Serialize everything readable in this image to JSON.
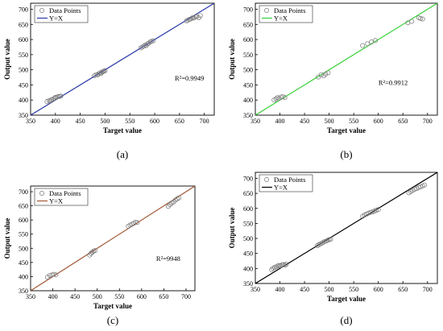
{
  "chart_data": [
    {
      "id": "a",
      "type": "scatter",
      "caption": "(a)",
      "xlabel": "Target value",
      "ylabel": "Output value",
      "xlim": [
        350,
        720
      ],
      "ylim": [
        350,
        720
      ],
      "xticks": [
        350,
        400,
        450,
        500,
        550,
        600,
        650,
        700
      ],
      "yticks": [
        350,
        400,
        450,
        500,
        550,
        600,
        650,
        700
      ],
      "legend_position": "top-left",
      "legend": [
        {
          "name": "Data Points",
          "kind": "marker"
        },
        {
          "name": "Y=X",
          "kind": "line"
        }
      ],
      "line_color": "#2b3aa8",
      "r2_label": "R²=0.9949",
      "r2_at": [
        670,
        465
      ],
      "points": [
        [
          383,
          395
        ],
        [
          387,
          398
        ],
        [
          390,
          397
        ],
        [
          392,
          401
        ],
        [
          395,
          403
        ],
        [
          398,
          406
        ],
        [
          400,
          409
        ],
        [
          403,
          410
        ],
        [
          406,
          412
        ],
        [
          409,
          412
        ],
        [
          411,
          413
        ],
        [
          478,
          480
        ],
        [
          482,
          484
        ],
        [
          485,
          483
        ],
        [
          487,
          487
        ],
        [
          490,
          490
        ],
        [
          492,
          488
        ],
        [
          494,
          493
        ],
        [
          496,
          494
        ],
        [
          498,
          496
        ],
        [
          500,
          497
        ],
        [
          572,
          572
        ],
        [
          575,
          575
        ],
        [
          578,
          578
        ],
        [
          581,
          582
        ],
        [
          583,
          580
        ],
        [
          586,
          586
        ],
        [
          588,
          588
        ],
        [
          591,
          592
        ],
        [
          594,
          594
        ],
        [
          597,
          596
        ],
        [
          664,
          662
        ],
        [
          667,
          664
        ],
        [
          670,
          667
        ],
        [
          673,
          668
        ],
        [
          676,
          672
        ],
        [
          679,
          671
        ],
        [
          682,
          675
        ],
        [
          685,
          676
        ],
        [
          689,
          672
        ],
        [
          692,
          679
        ]
      ]
    },
    {
      "id": "b",
      "type": "scatter",
      "caption": "(b)",
      "xlabel": "Target value",
      "ylabel": "Output value",
      "xlim": [
        350,
        720
      ],
      "ylim": [
        350,
        720
      ],
      "xticks": [
        350,
        400,
        450,
        500,
        550,
        600,
        650,
        700
      ],
      "yticks": [
        350,
        400,
        450,
        500,
        550,
        600,
        650,
        700
      ],
      "legend_position": "top-left",
      "legend": [
        {
          "name": "Data Points",
          "kind": "marker"
        },
        {
          "name": "Y=X",
          "kind": "line"
        }
      ],
      "line_color": "#3ad13a",
      "r2_label": "R²=0.9912",
      "r2_at": [
        630,
        450
      ],
      "points": [
        [
          388,
          400
        ],
        [
          392,
          404
        ],
        [
          395,
          408
        ],
        [
          398,
          405
        ],
        [
          402,
          410
        ],
        [
          406,
          411
        ],
        [
          410,
          408
        ],
        [
          478,
          476
        ],
        [
          484,
          484
        ],
        [
          489,
          480
        ],
        [
          493,
          486
        ],
        [
          498,
          490
        ],
        [
          568,
          580
        ],
        [
          578,
          586
        ],
        [
          586,
          592
        ],
        [
          594,
          597
        ],
        [
          660,
          655
        ],
        [
          668,
          660
        ],
        [
          682,
          672
        ],
        [
          686,
          670
        ],
        [
          690,
          668
        ]
      ]
    },
    {
      "id": "c",
      "type": "scatter",
      "caption": "(c)",
      "xlabel": "Target value",
      "ylabel": "Output value",
      "xlim": [
        350,
        720
      ],
      "ylim": [
        350,
        720
      ],
      "xticks": [
        350,
        400,
        450,
        500,
        550,
        600,
        650,
        700
      ],
      "yticks": [
        350,
        400,
        450,
        500,
        550,
        600,
        650,
        700
      ],
      "legend_position": "top-left",
      "legend": [
        {
          "name": "Data Points",
          "kind": "marker"
        },
        {
          "name": "Y=X",
          "kind": "line"
        }
      ],
      "line_color": "#a35a3a",
      "r2_label": "R²=9948",
      "r2_at": [
        660,
        455
      ],
      "points": [
        [
          388,
          398
        ],
        [
          393,
          404
        ],
        [
          398,
          406
        ],
        [
          402,
          408
        ],
        [
          407,
          406
        ],
        [
          483,
          476
        ],
        [
          486,
          482
        ],
        [
          489,
          486
        ],
        [
          492,
          490
        ],
        [
          495,
          492
        ],
        [
          570,
          578
        ],
        [
          574,
          582
        ],
        [
          578,
          585
        ],
        [
          582,
          588
        ],
        [
          586,
          592
        ],
        [
          590,
          591
        ],
        [
          660,
          648
        ],
        [
          664,
          654
        ],
        [
          668,
          660
        ],
        [
          672,
          664
        ],
        [
          676,
          670
        ],
        [
          680,
          675
        ],
        [
          684,
          678
        ]
      ]
    },
    {
      "id": "d",
      "type": "scatter",
      "caption": "(d)",
      "xlabel": "Target value",
      "ylabel": "Output value",
      "xlim": [
        350,
        720
      ],
      "ylim": [
        350,
        720
      ],
      "xticks": [
        350,
        400,
        450,
        500,
        550,
        600,
        650,
        700
      ],
      "yticks": [
        350,
        400,
        450,
        500,
        550,
        600,
        650,
        700
      ],
      "legend_position": "top-left",
      "legend": [
        {
          "name": "Data Points",
          "kind": "marker"
        },
        {
          "name": "Y=X",
          "kind": "line"
        }
      ],
      "line_color": "#000000",
      "r2_label": "",
      "r2_at": [
        0,
        0
      ],
      "points": [
        [
          383,
          396
        ],
        [
          386,
          400
        ],
        [
          389,
          403
        ],
        [
          392,
          405
        ],
        [
          395,
          408
        ],
        [
          398,
          410
        ],
        [
          401,
          409
        ],
        [
          404,
          412
        ],
        [
          407,
          413
        ],
        [
          410,
          411
        ],
        [
          413,
          414
        ],
        [
          476,
          476
        ],
        [
          479,
          479
        ],
        [
          482,
          482
        ],
        [
          485,
          484
        ],
        [
          488,
          487
        ],
        [
          491,
          490
        ],
        [
          494,
          491
        ],
        [
          497,
          494
        ],
        [
          500,
          496
        ],
        [
          503,
          497
        ],
        [
          568,
          574
        ],
        [
          572,
          578
        ],
        [
          576,
          581
        ],
        [
          580,
          584
        ],
        [
          584,
          587
        ],
        [
          588,
          588
        ],
        [
          592,
          591
        ],
        [
          596,
          594
        ],
        [
          600,
          596
        ],
        [
          662,
          652
        ],
        [
          666,
          656
        ],
        [
          670,
          660
        ],
        [
          674,
          664
        ],
        [
          678,
          666
        ],
        [
          682,
          670
        ],
        [
          686,
          672
        ],
        [
          690,
          675
        ],
        [
          694,
          678
        ]
      ]
    }
  ]
}
